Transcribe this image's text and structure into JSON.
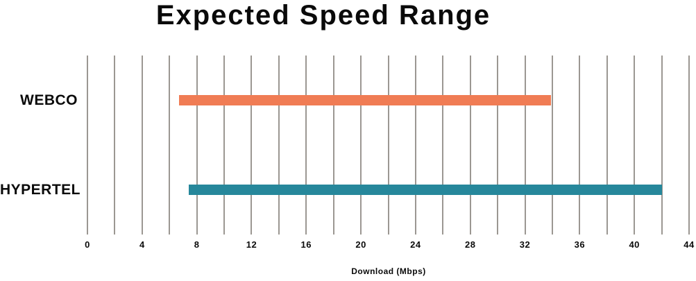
{
  "chart_data": {
    "type": "bar",
    "subtype": "horizontal-range-bar",
    "title": "Expected Speed Range",
    "xlabel": "Download (Mbps)",
    "xlim": [
      0,
      44
    ],
    "xtick_step": 4,
    "gridline_step": 2,
    "grid": "vertical-only",
    "legend": "none",
    "categories": [
      "WEBCO",
      "HYPERTEL"
    ],
    "series": [
      {
        "name": "WEBCO",
        "range": [
          6.7,
          33.9
        ],
        "color": "#F07C54"
      },
      {
        "name": "HYPERTEL",
        "range": [
          7.4,
          42.0
        ],
        "color": "#26879B"
      }
    ],
    "colors": {
      "gridline": "#9B9792",
      "text": "#0A0A0A",
      "background": "#FFFFFF"
    }
  }
}
